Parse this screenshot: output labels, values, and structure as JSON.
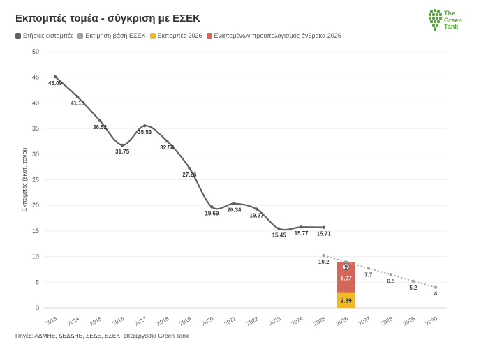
{
  "title": "Εκπομπές τομέα - σύγκριση με ΕΣΕΚ",
  "legend": [
    {
      "label": "Ετήσιες εκπομπές",
      "color": "#606060"
    },
    {
      "label": "Εκτίμηση βάση ΕΣΕΚ",
      "color": "#a0a0a0"
    },
    {
      "label": "Εκπομπές 2026",
      "color": "#f0b92a"
    },
    {
      "label": "Εναπομένων προυπολογισμός άνθρακα 2026",
      "color": "#d3675a"
    }
  ],
  "logo": {
    "line1": "The",
    "line2": "Green",
    "line3": "Tank",
    "color": "#5aa83c"
  },
  "source": "Πηγές: ΑΔΜΗΕ, ΔΕΔΔΗΕ, ΣΕΔΕ, ΕΣΕΚ, επεξεργασία Green Tank",
  "chart_data": {
    "type": "line",
    "title": "Εκπομπές τομέα - σύγκριση με ΕΣΕΚ",
    "ylabel": "Εκπομπές (εκατ. τόνοι)",
    "xlabel": "",
    "ylim": [
      0,
      50
    ],
    "yticks": [
      0,
      5,
      10,
      15,
      20,
      25,
      30,
      35,
      40,
      45,
      50
    ],
    "categories": [
      "2013",
      "2014",
      "2015",
      "2016",
      "2017",
      "2018",
      "2019",
      "2020",
      "2021",
      "2022",
      "2023",
      "2024",
      "2025",
      "2026",
      "2027",
      "2028",
      "2029",
      "2030"
    ],
    "grid": true,
    "legend_position": "top-left",
    "series": [
      {
        "name": "Ετήσιες εκπομπές",
        "type": "line",
        "color": "#606060",
        "x": [
          "2013",
          "2014",
          "2015",
          "2016",
          "2017",
          "2018",
          "2019",
          "2020",
          "2021",
          "2022",
          "2023",
          "2024",
          "2025"
        ],
        "values": [
          45.09,
          41.18,
          36.52,
          31.75,
          35.53,
          32.54,
          27.26,
          19.69,
          20.34,
          19.27,
          15.45,
          15.77,
          15.71
        ]
      },
      {
        "name": "Εκτίμηση βάση ΕΣΕΚ",
        "type": "dotted-line",
        "color": "#a0a0a0",
        "x": [
          "2025",
          "2026",
          "2027",
          "2028",
          "2029",
          "2030"
        ],
        "values": [
          10.2,
          8.96,
          7.7,
          6.5,
          5.2,
          4
        ],
        "labels": [
          "10.2",
          "",
          "7.7",
          "6.5",
          "5.2",
          "4"
        ]
      },
      {
        "name": "Εκπομπές 2026",
        "type": "bar",
        "color": "#f0b92a",
        "x": [
          "2026"
        ],
        "values": [
          2.89
        ]
      },
      {
        "name": "Εναπομένων προυπολογισμός άνθρακα 2026",
        "type": "bar-stacked",
        "color": "#d3675a",
        "x": [
          "2026"
        ],
        "values": [
          6.07
        ]
      }
    ],
    "annotations": [
      {
        "x": "2026",
        "text": "9"
      }
    ]
  }
}
